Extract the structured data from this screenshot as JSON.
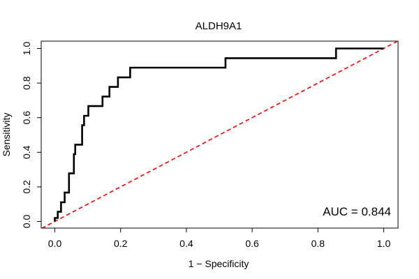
{
  "chart_data": {
    "type": "line",
    "title": "ALDH9A1",
    "xlabel": "1 − Specificity",
    "ylabel": "Sensitivity",
    "xlim": [
      0,
      1
    ],
    "ylim": [
      0,
      1
    ],
    "x_ticks": [
      "0.0",
      "0.2",
      "0.4",
      "0.6",
      "0.8",
      "1.0"
    ],
    "y_ticks": [
      "0.0",
      "0.2",
      "0.4",
      "0.6",
      "0.8",
      "1.0"
    ],
    "annotation": "AUC = 0.844",
    "grid": false,
    "series": [
      {
        "kind": "roc-curve",
        "color": "#000000",
        "points": [
          [
            0.0,
            0.0
          ],
          [
            0.0,
            0.02
          ],
          [
            0.009,
            0.02
          ],
          [
            0.009,
            0.056
          ],
          [
            0.019,
            0.056
          ],
          [
            0.019,
            0.111
          ],
          [
            0.03,
            0.111
          ],
          [
            0.03,
            0.167
          ],
          [
            0.043,
            0.167
          ],
          [
            0.043,
            0.278
          ],
          [
            0.058,
            0.278
          ],
          [
            0.058,
            0.389
          ],
          [
            0.062,
            0.389
          ],
          [
            0.062,
            0.444
          ],
          [
            0.083,
            0.444
          ],
          [
            0.083,
            0.556
          ],
          [
            0.089,
            0.556
          ],
          [
            0.089,
            0.611
          ],
          [
            0.102,
            0.611
          ],
          [
            0.102,
            0.667
          ],
          [
            0.145,
            0.667
          ],
          [
            0.145,
            0.722
          ],
          [
            0.166,
            0.722
          ],
          [
            0.166,
            0.778
          ],
          [
            0.192,
            0.778
          ],
          [
            0.192,
            0.833
          ],
          [
            0.229,
            0.833
          ],
          [
            0.229,
            0.889
          ],
          [
            0.519,
            0.889
          ],
          [
            0.519,
            0.944
          ],
          [
            0.855,
            0.944
          ],
          [
            0.855,
            1.0
          ],
          [
            1.0,
            1.0
          ]
        ]
      },
      {
        "kind": "reference-diagonal",
        "color": "#ff0000",
        "points": [
          [
            -0.04,
            -0.04
          ],
          [
            1.04,
            1.04
          ]
        ]
      }
    ]
  }
}
